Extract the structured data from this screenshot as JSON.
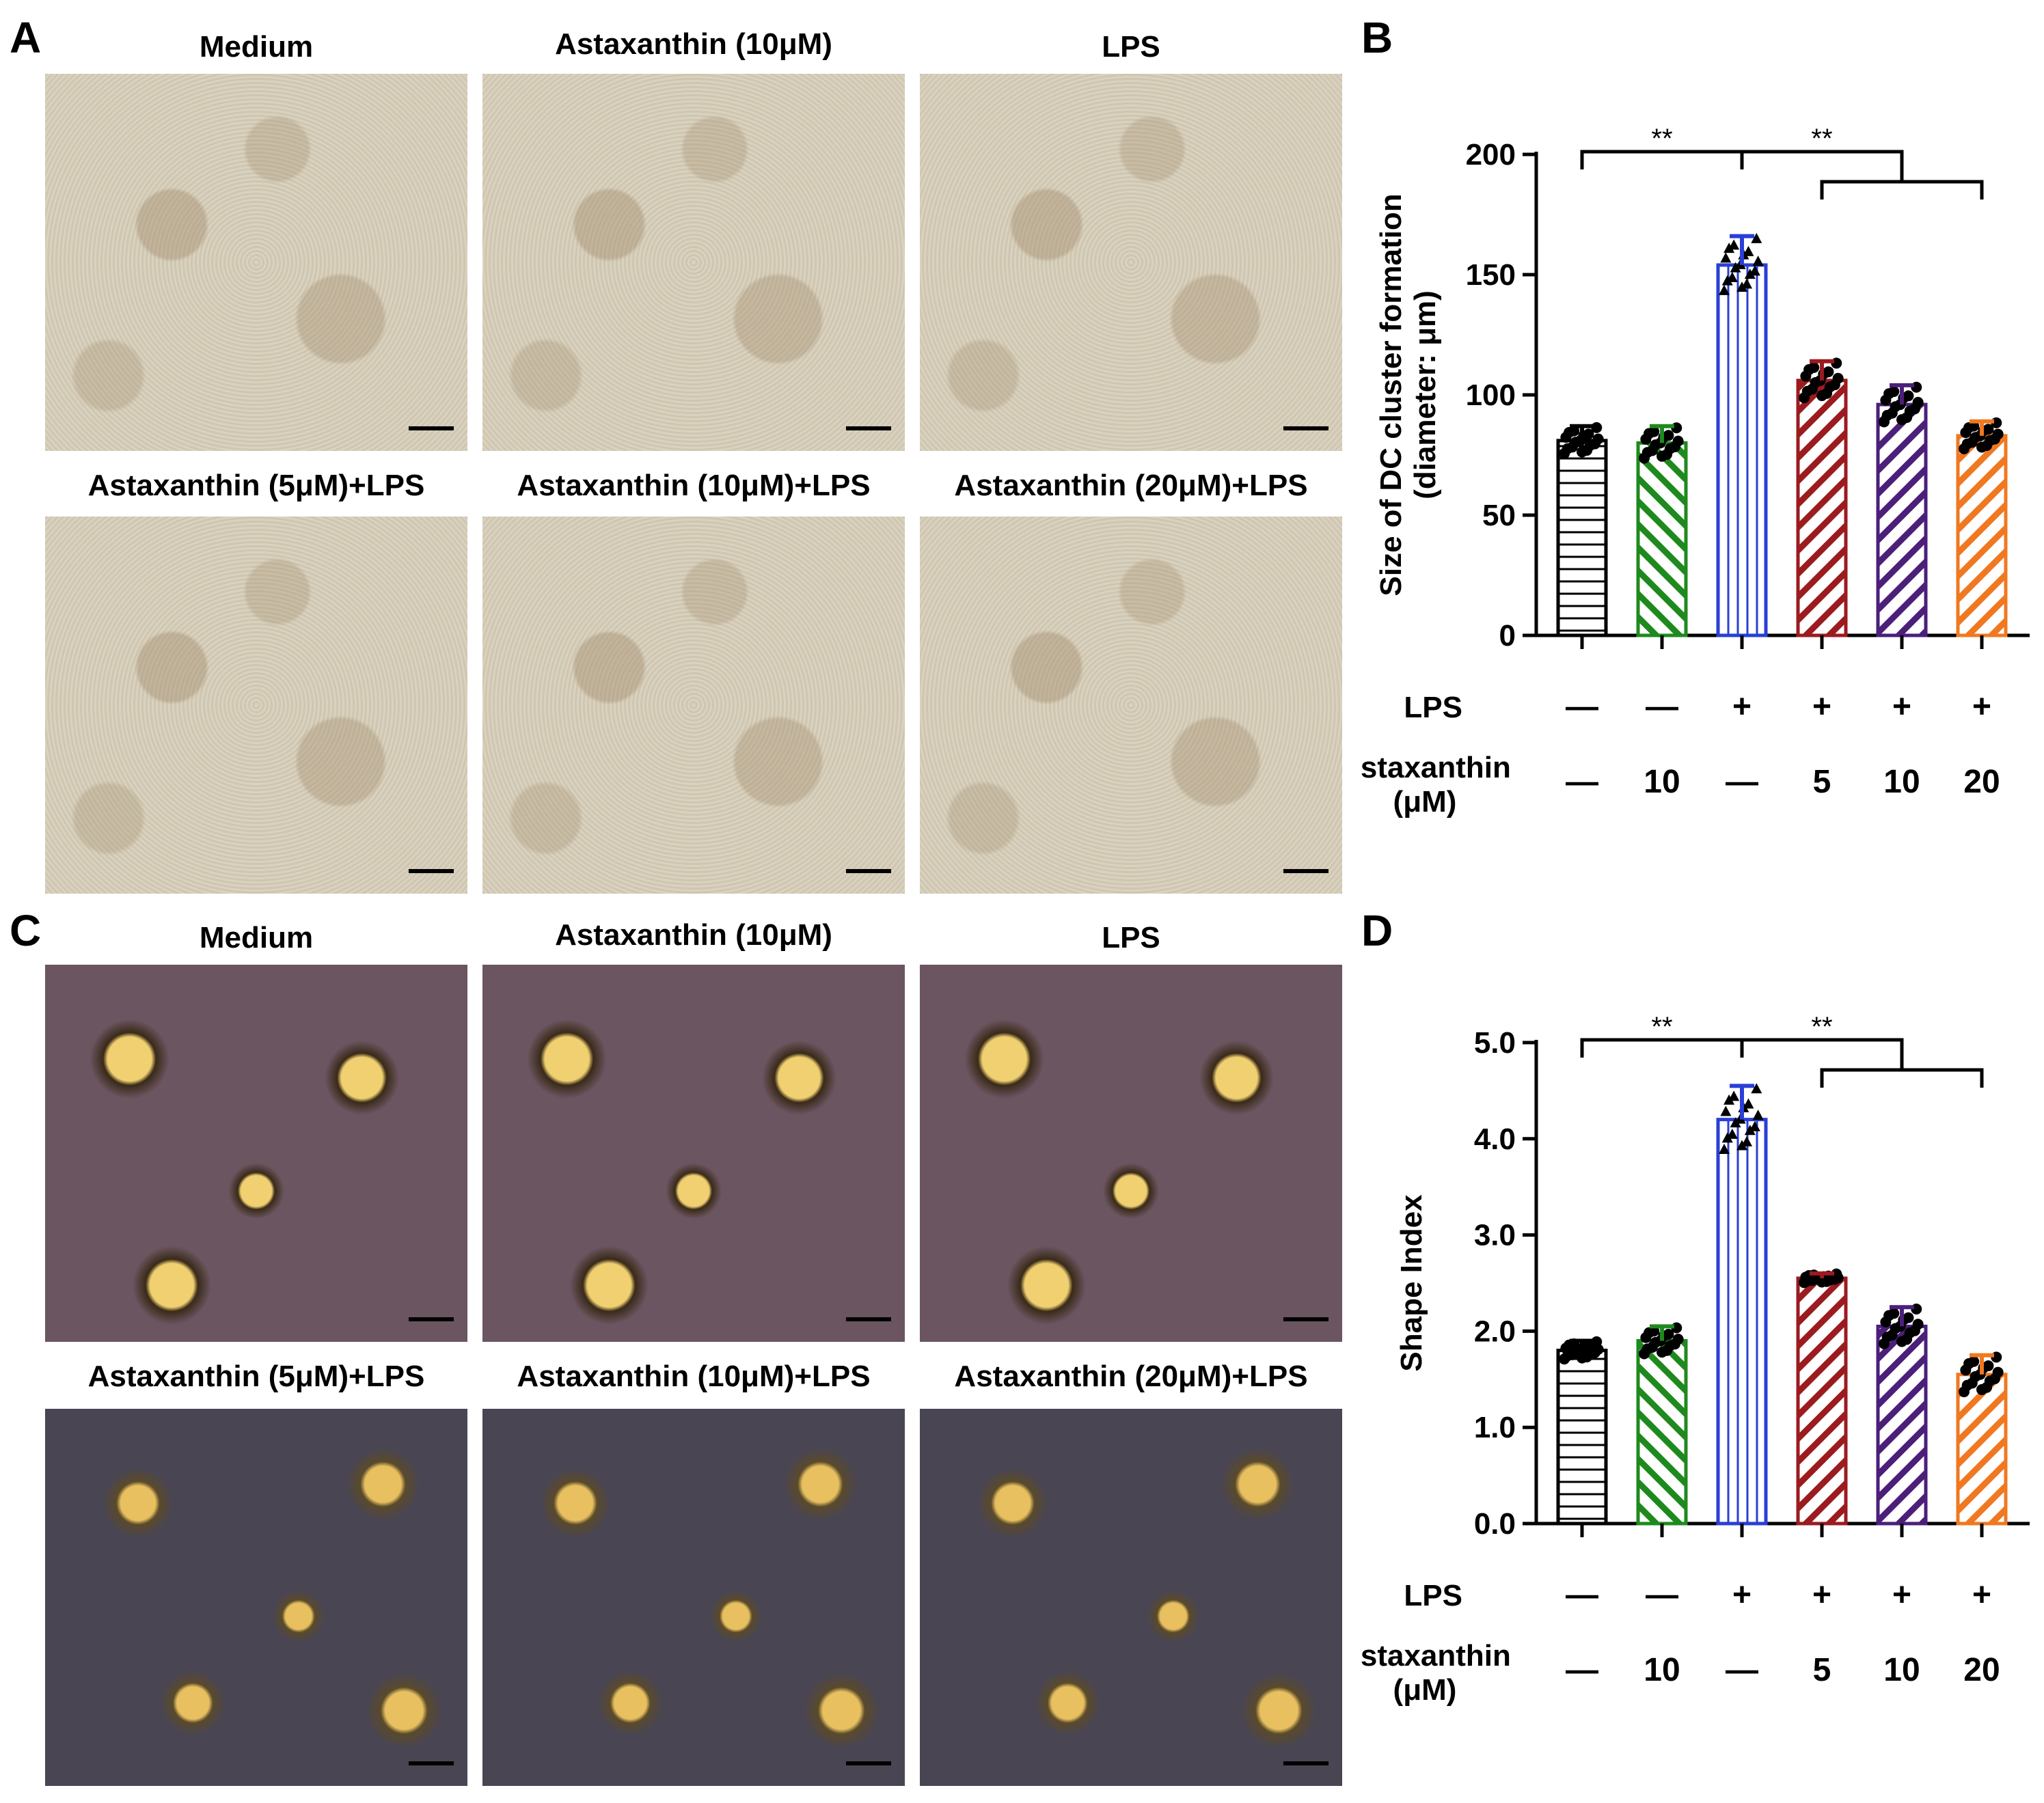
{
  "panels": {
    "A": "A",
    "B": "B",
    "C": "C",
    "D": "D"
  },
  "image_titles": {
    "medium": "Medium",
    "asta10": "Astaxanthin (10μM)",
    "lps": "LPS",
    "asta5_lps": "Astaxanthin (5μM)+LPS",
    "asta10_lps": "Astaxanthin (10μM)+LPS",
    "asta20_lps": "Astaxanthin (20μM)+LPS"
  },
  "chart_data": [
    {
      "type": "bar",
      "panel": "B",
      "ylabel": "Size of DC cluster formation (diameter: μm)",
      "ylabel_lines": [
        "Size of DC cluster formation",
        "(diameter: μm)"
      ],
      "ylim": [
        0,
        200
      ],
      "yticks": [
        "0",
        "50",
        "100",
        "150",
        "200"
      ],
      "values": [
        81,
        80,
        154,
        106,
        96,
        83
      ],
      "errors": [
        6,
        7,
        12,
        8,
        8,
        6
      ],
      "colors": [
        "#000000",
        "#1e8a1e",
        "#2a3fd6",
        "#9b1b1f",
        "#4b1f7a",
        "#f07820"
      ],
      "significance": [
        "**",
        "**"
      ],
      "conditions": {
        "lps_label": "LPS",
        "lps": [
          "—",
          "—",
          "+",
          "+",
          "+",
          "+"
        ],
        "asta_label": [
          "Astaxanthin",
          "(μM)"
        ],
        "asta": [
          "—",
          "10",
          "—",
          "5",
          "10",
          "20"
        ]
      }
    },
    {
      "type": "bar",
      "panel": "D",
      "ylabel": "Shape Index",
      "ylabel_lines": [
        "Shape Index"
      ],
      "ylim": [
        0,
        5
      ],
      "yticks": [
        "0.0",
        "1.0",
        "2.0",
        "3.0",
        "4.0",
        "5.0"
      ],
      "values": [
        1.8,
        1.9,
        4.2,
        2.55,
        2.05,
        1.55
      ],
      "errors": [
        0.1,
        0.15,
        0.35,
        0.05,
        0.2,
        0.2
      ],
      "colors": [
        "#000000",
        "#1e8a1e",
        "#2a3fd6",
        "#9b1b1f",
        "#4b1f7a",
        "#f07820"
      ],
      "significance": [
        "**",
        "**"
      ],
      "conditions": {
        "lps_label": "LPS",
        "lps": [
          "—",
          "—",
          "+",
          "+",
          "+",
          "+"
        ],
        "asta_label": [
          "Astaxanthin",
          "(μM)"
        ],
        "asta": [
          "—",
          "10",
          "—",
          "5",
          "10",
          "20"
        ]
      }
    }
  ]
}
